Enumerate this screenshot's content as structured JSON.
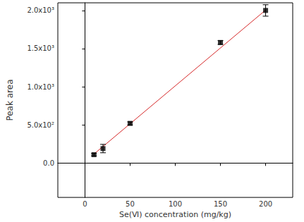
{
  "chart_data": {
    "type": "scatter",
    "x_label": "Se(Ⅵ) concentration (mg/kg)",
    "y_label": "Peak area",
    "x": [
      10,
      20,
      50,
      150,
      200
    ],
    "values": [
      110,
      190,
      520,
      1580,
      2000
    ],
    "errors": [
      15,
      55,
      20,
      25,
      75
    ],
    "color": "#000000",
    "marker": "square",
    "fit_line": {
      "x": [
        10,
        200
      ],
      "values": [
        118,
        2005
      ],
      "color": "#d62728",
      "line_style": "solid"
    },
    "xlim": [
      -30,
      230
    ],
    "xticks": [
      0,
      50,
      100,
      150,
      200
    ],
    "ylim": [
      -450,
      2100
    ],
    "yticks": [
      {
        "value": 0,
        "label": "0.0"
      },
      {
        "value": 500,
        "label": "5.0x10²"
      },
      {
        "value": 1000,
        "label": "1.0x10³"
      },
      {
        "value": 1500,
        "label": "1.5x10³"
      },
      {
        "value": 2000,
        "label": "2.0x10³"
      }
    ],
    "grid": false
  }
}
